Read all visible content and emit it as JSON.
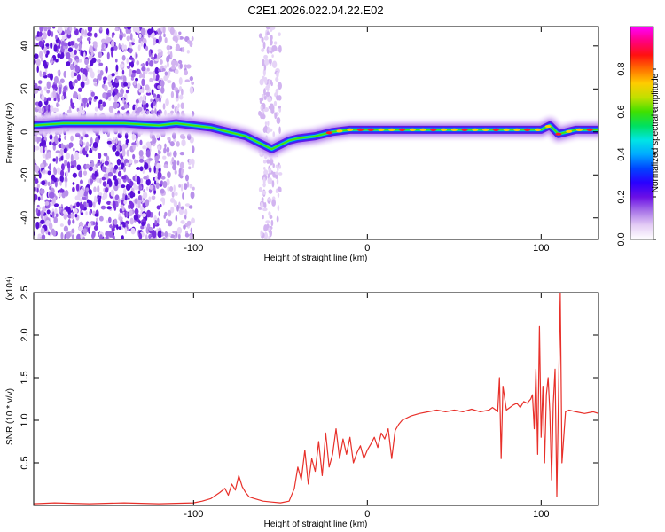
{
  "title": "C2E1.2026.022.04.22.E02",
  "chart_data": [
    {
      "type": "heatmap",
      "name": "spectrogram",
      "xlabel": "Height of straight line (km)",
      "ylabel": "Frequency (Hz)",
      "xlim": [
        -192,
        133
      ],
      "ylim": [
        -50,
        49
      ],
      "xticks": [
        -100,
        0,
        100
      ],
      "xtick_labels": [
        "-100",
        "0",
        "100"
      ],
      "yticks": [
        -40,
        -20,
        0,
        20,
        40
      ],
      "ytick_labels": [
        "-40",
        "-20",
        "0",
        "20",
        "40"
      ],
      "ridge": {
        "x": [
          -192,
          -175,
          -160,
          -140,
          -120,
          -110,
          -100,
          -90,
          -80,
          -70,
          -60,
          -55,
          -50,
          -45,
          -40,
          -30,
          -20,
          -10,
          0,
          20,
          40,
          60,
          80,
          100,
          105,
          110,
          120,
          133
        ],
        "y": [
          3,
          4,
          4,
          4,
          3,
          4,
          3,
          2,
          0,
          -2,
          -6,
          -8,
          -6,
          -4,
          -3,
          -2,
          0,
          1,
          1,
          1,
          1,
          1,
          1,
          1,
          3,
          -1,
          1,
          1
        ]
      },
      "colorbar": {
        "label": "Normalized spectral amplitude",
        "range": [
          0,
          1
        ],
        "ticks": [
          0.0,
          0.2,
          0.4,
          0.6,
          0.8
        ],
        "tick_labels": [
          "0.0",
          "0.2",
          "0.4",
          "0.6",
          "0.8"
        ],
        "colors": [
          "#ffffff",
          "#e4ccf5",
          "#a874e8",
          "#6a0fe6",
          "#2a00ff",
          "#0044ff",
          "#00aaff",
          "#00e5e5",
          "#00e060",
          "#40e000",
          "#c0e000",
          "#ffcc00",
          "#ff7000",
          "#ff1010",
          "#ff0080",
          "#ff00ff"
        ]
      }
    },
    {
      "type": "line",
      "name": "snr",
      "xlabel": "Height of straight line (km)",
      "ylabel": "SNR (10 * v/v)",
      "multiplier": "(x10⁴)",
      "xlim": [
        -192,
        133
      ],
      "ylim": [
        0,
        2.5
      ],
      "xticks": [
        -100,
        0,
        100
      ],
      "xtick_labels": [
        "-100",
        "0",
        "100"
      ],
      "yticks": [
        0.5,
        1.0,
        1.5,
        2.0,
        2.5
      ],
      "ytick_labels": [
        "0.5",
        "1.0",
        "1.5",
        "2.0",
        "2.5"
      ],
      "color": "#e8302a",
      "series": [
        {
          "name": "SNR",
          "x": [
            -192,
            -180,
            -160,
            -140,
            -120,
            -100,
            -95,
            -90,
            -85,
            -82,
            -80,
            -78,
            -76,
            -74,
            -72,
            -70,
            -68,
            -65,
            -60,
            -55,
            -50,
            -45,
            -42,
            -40,
            -38,
            -36,
            -34,
            -32,
            -30,
            -28,
            -26,
            -24,
            -22,
            -20,
            -18,
            -16,
            -14,
            -12,
            -10,
            -8,
            -6,
            -4,
            -2,
            0,
            2,
            4,
            6,
            8,
            10,
            12,
            14,
            16,
            18,
            20,
            25,
            30,
            35,
            40,
            45,
            50,
            55,
            60,
            65,
            70,
            72,
            74,
            75,
            76,
            77,
            78,
            80,
            82,
            84,
            86,
            88,
            90,
            92,
            94,
            95,
            96,
            97,
            98,
            99,
            100,
            101,
            102,
            103,
            104,
            105,
            106,
            107,
            108,
            109,
            110,
            111,
            112,
            114,
            116,
            120,
            125,
            130,
            133
          ],
          "y": [
            0.02,
            0.03,
            0.02,
            0.03,
            0.02,
            0.03,
            0.05,
            0.08,
            0.15,
            0.2,
            0.12,
            0.25,
            0.18,
            0.35,
            0.22,
            0.15,
            0.1,
            0.08,
            0.05,
            0.04,
            0.03,
            0.05,
            0.2,
            0.45,
            0.3,
            0.65,
            0.25,
            0.55,
            0.4,
            0.75,
            0.35,
            0.85,
            0.45,
            0.6,
            0.9,
            0.55,
            0.78,
            0.6,
            0.8,
            0.5,
            0.62,
            0.7,
            0.55,
            0.65,
            0.72,
            0.8,
            0.68,
            0.85,
            0.78,
            0.9,
            0.55,
            0.88,
            0.95,
            1.0,
            1.05,
            1.08,
            1.1,
            1.12,
            1.1,
            1.12,
            1.1,
            1.13,
            1.1,
            1.12,
            1.15,
            1.12,
            1.1,
            1.5,
            0.55,
            1.4,
            1.12,
            1.15,
            1.18,
            1.2,
            1.15,
            1.22,
            1.2,
            1.25,
            1.3,
            0.9,
            1.6,
            0.6,
            2.1,
            0.8,
            1.4,
            0.5,
            1.3,
            1.5,
            1.1,
            0.3,
            1.2,
            1.6,
            0.1,
            1.3,
            2.5,
            0.5,
            1.1,
            1.12,
            1.1,
            1.08,
            1.1,
            1.08
          ]
        }
      ]
    }
  ]
}
